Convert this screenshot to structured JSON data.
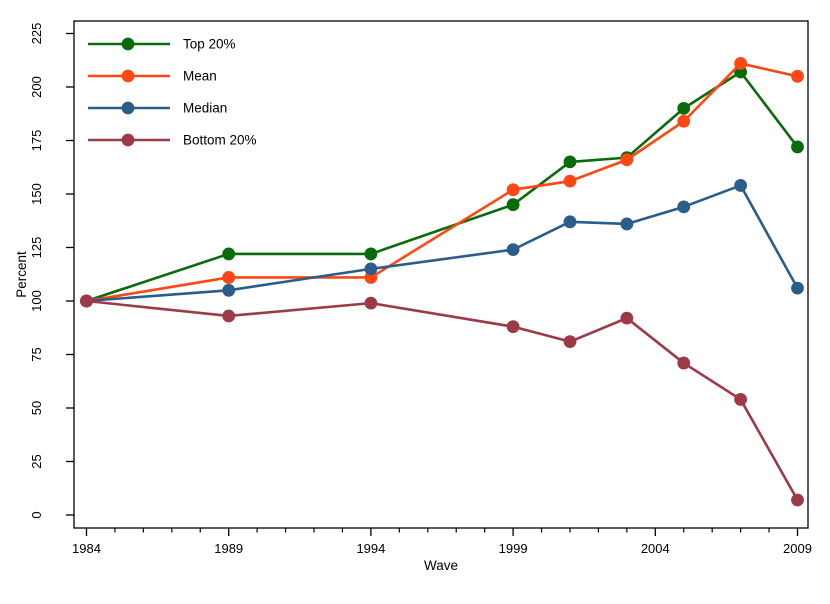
{
  "chart_data": {
    "type": "line",
    "title": "",
    "xlabel": "Wave",
    "ylabel": "Percent",
    "x": [
      1984,
      1989,
      1994,
      1999,
      2001,
      2003,
      2005,
      2007,
      2009
    ],
    "x_major_ticks": [
      "1984",
      "1989",
      "1994",
      "1999",
      "2004",
      "2009"
    ],
    "x_major_tick_years": [
      1984,
      1989,
      1994,
      1999,
      2004,
      2009
    ],
    "x_minor_tick_step": 1,
    "y_ticks": [
      "0",
      "25",
      "50",
      "75",
      "100",
      "125",
      "150",
      "175",
      "200",
      "225"
    ],
    "y_tick_values": [
      0,
      25,
      50,
      75,
      100,
      125,
      150,
      175,
      200,
      225
    ],
    "xlim": [
      1983.56,
      2009.42
    ],
    "ylim": [
      -6.3,
      231.2
    ],
    "grid": false,
    "legend_position": "top-left-inside",
    "series": [
      {
        "name": "Top 20%",
        "color": "#0a6b0a",
        "values": [
          100,
          122,
          122,
          145,
          165,
          167,
          190,
          207,
          172
        ]
      },
      {
        "name": "Mean",
        "color": "#ff4713",
        "values": [
          100,
          111,
          111,
          152,
          156,
          166,
          184,
          211,
          205
        ]
      },
      {
        "name": "Median",
        "color": "#2a5d8a",
        "values": [
          100,
          105,
          115,
          124,
          137,
          136,
          144,
          154,
          106
        ]
      },
      {
        "name": "Bottom 20%",
        "color": "#9e3a47",
        "values": [
          100,
          93,
          99,
          88,
          81,
          92,
          71,
          54,
          7
        ]
      }
    ],
    "axis_color": "#000000",
    "background": "#ffffff"
  }
}
